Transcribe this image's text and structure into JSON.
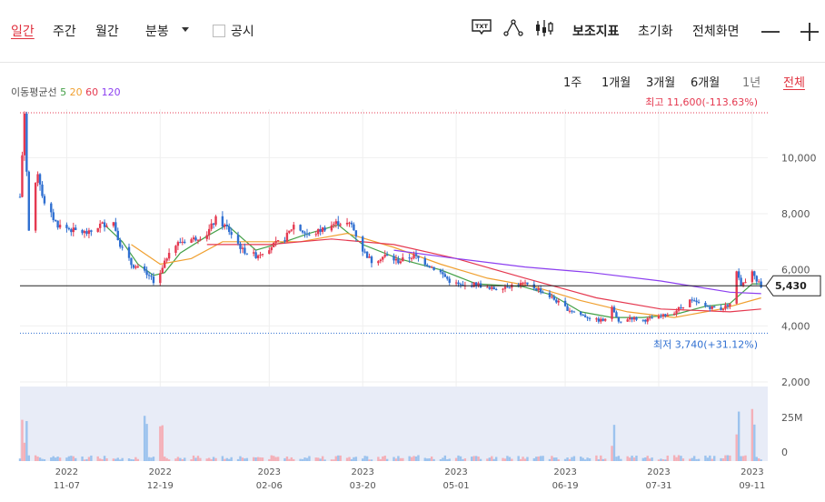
{
  "toolbar": {
    "tabs": [
      "일간",
      "주간",
      "월간",
      "분봉"
    ],
    "disclosure_label": "공시",
    "txt_icon_label": "TXT",
    "indicator_label": "보조지표",
    "reset_label": "초기화",
    "fullscreen_label": "전체화면",
    "zoom_out": "—",
    "zoom_in": "+"
  },
  "moving_average": {
    "label": "이동평균선",
    "periods": [
      "5",
      "20",
      "60",
      "120"
    ],
    "colors": {
      "5": "#43a047",
      "20": "#f0a030",
      "60": "#e53950",
      "120": "#8c3ff0"
    }
  },
  "periods": [
    "1주",
    "1개월",
    "3개월",
    "6개월",
    "1년",
    "전체"
  ],
  "colors": {
    "up": "#e53950",
    "down": "#2f6fd1",
    "volume_up": "#f4b0b8",
    "volume_down": "#9cc3ee"
  },
  "chart_data": {
    "type": "candlestick",
    "current_price": 5430,
    "current_price_label": "5,430",
    "high": {
      "value": 11600,
      "label": "최고 11,600(-113.63%)"
    },
    "low": {
      "value": 3740,
      "label": "최저 3,740(+31.12%)"
    },
    "ylim": [
      2000,
      11600
    ],
    "y_ticks": [
      10000,
      8000,
      6000,
      4000,
      2000
    ],
    "y_tick_labels": [
      "10,000",
      "8,000",
      "6,000",
      "4,000",
      "2,000"
    ],
    "volume_ticks": [
      "25M",
      "0"
    ],
    "volume_max_millions": 50,
    "x_ticks": [
      {
        "date": "2022-11-07",
        "year": "2022",
        "md": "11-07"
      },
      {
        "date": "2022-12-19",
        "year": "2022",
        "md": "12-19"
      },
      {
        "date": "2023-02-06",
        "year": "2023",
        "md": "02-06"
      },
      {
        "date": "2023-03-20",
        "year": "2023",
        "md": "03-20"
      },
      {
        "date": "2023-05-01",
        "year": "2023",
        "md": "05-01"
      },
      {
        "date": "2023-06-19",
        "year": "2023",
        "md": "06-19"
      },
      {
        "date": "2023-07-31",
        "year": "2023",
        "md": "07-31"
      },
      {
        "date": "2023-09-11",
        "year": "2023",
        "md": "09-11"
      }
    ],
    "x_range": [
      "2022-10-17",
      "2023-09-18"
    ],
    "price_path": [
      [
        "2022-10-17",
        8600
      ],
      [
        "2022-10-19",
        11600
      ],
      [
        "2022-10-21",
        7400
      ],
      [
        "2022-10-25",
        9500
      ],
      [
        "2022-10-28",
        8300
      ],
      [
        "2022-11-03",
        7600
      ],
      [
        "2022-11-10",
        7400
      ],
      [
        "2022-11-17",
        7300
      ],
      [
        "2022-11-22",
        7600
      ],
      [
        "2022-11-28",
        7700
      ],
      [
        "2022-12-01",
        6900
      ],
      [
        "2022-12-06",
        6200
      ],
      [
        "2022-12-12",
        5900
      ],
      [
        "2022-12-16",
        5600
      ],
      [
        "2022-12-20",
        6000
      ],
      [
        "2022-12-23",
        6700
      ],
      [
        "2022-12-28",
        7000
      ],
      [
        "2023-01-03",
        7100
      ],
      [
        "2023-01-09",
        7300
      ],
      [
        "2023-01-13",
        7800
      ],
      [
        "2023-01-18",
        7500
      ],
      [
        "2023-01-25",
        6700
      ],
      [
        "2023-01-31",
        6500
      ],
      [
        "2023-02-06",
        6800
      ],
      [
        "2023-02-13",
        7100
      ],
      [
        "2023-02-17",
        7600
      ],
      [
        "2023-02-24",
        7200
      ],
      [
        "2023-03-03",
        7500
      ],
      [
        "2023-03-09",
        7700
      ],
      [
        "2023-03-15",
        7600
      ],
      [
        "2023-03-20",
        6700
      ],
      [
        "2023-03-24",
        6300
      ],
      [
        "2023-03-30",
        6500
      ],
      [
        "2023-04-05",
        6300
      ],
      [
        "2023-04-12",
        6500
      ],
      [
        "2023-04-18",
        6200
      ],
      [
        "2023-04-24",
        5900
      ],
      [
        "2023-04-28",
        5600
      ],
      [
        "2023-05-04",
        5400
      ],
      [
        "2023-05-10",
        5500
      ],
      [
        "2023-05-16",
        5300
      ],
      [
        "2023-05-22",
        5400
      ],
      [
        "2023-05-31",
        5500
      ],
      [
        "2023-06-07",
        5300
      ],
      [
        "2023-06-13",
        5000
      ],
      [
        "2023-06-20",
        4600
      ],
      [
        "2023-06-26",
        4400
      ],
      [
        "2023-07-03",
        4200
      ],
      [
        "2023-07-07",
        4200
      ],
      [
        "2023-07-10",
        4700
      ],
      [
        "2023-07-13",
        4100
      ],
      [
        "2023-07-18",
        4300
      ],
      [
        "2023-07-24",
        4200
      ],
      [
        "2023-07-31",
        4300
      ],
      [
        "2023-08-07",
        4500
      ],
      [
        "2023-08-14",
        4900
      ],
      [
        "2023-08-21",
        4700
      ],
      [
        "2023-08-28",
        4600
      ],
      [
        "2023-09-01",
        4800
      ],
      [
        "2023-09-04",
        5900
      ],
      [
        "2023-09-06",
        5400
      ],
      [
        "2023-09-11",
        5900
      ],
      [
        "2023-09-15",
        5430
      ]
    ],
    "ma5": [
      [
        "2022-11-24",
        7600
      ],
      [
        "2022-12-02",
        7000
      ],
      [
        "2022-12-09",
        6200
      ],
      [
        "2022-12-16",
        5800
      ],
      [
        "2022-12-21",
        5900
      ],
      [
        "2022-12-28",
        6600
      ],
      [
        "2023-01-09",
        7200
      ],
      [
        "2023-01-18",
        7600
      ],
      [
        "2023-01-31",
        6700
      ],
      [
        "2023-02-13",
        7000
      ],
      [
        "2023-02-24",
        7300
      ],
      [
        "2023-03-09",
        7600
      ],
      [
        "2023-03-20",
        6900
      ],
      [
        "2023-04-05",
        6400
      ],
      [
        "2023-04-24",
        6000
      ],
      [
        "2023-05-10",
        5500
      ],
      [
        "2023-05-31",
        5400
      ],
      [
        "2023-06-13",
        5100
      ],
      [
        "2023-06-26",
        4500
      ],
      [
        "2023-07-10",
        4300
      ],
      [
        "2023-07-24",
        4300
      ],
      [
        "2023-08-07",
        4400
      ],
      [
        "2023-08-21",
        4700
      ],
      [
        "2023-09-01",
        4800
      ],
      [
        "2023-09-11",
        5500
      ],
      [
        "2023-09-15",
        5500
      ]
    ],
    "ma20": [
      [
        "2022-12-06",
        6900
      ],
      [
        "2022-12-19",
        6200
      ],
      [
        "2023-01-02",
        6400
      ],
      [
        "2023-01-16",
        7000
      ],
      [
        "2023-02-01",
        7000
      ],
      [
        "2023-02-20",
        7000
      ],
      [
        "2023-03-13",
        7300
      ],
      [
        "2023-04-03",
        6800
      ],
      [
        "2023-04-24",
        6200
      ],
      [
        "2023-05-15",
        5700
      ],
      [
        "2023-06-05",
        5400
      ],
      [
        "2023-06-26",
        4900
      ],
      [
        "2023-07-17",
        4500
      ],
      [
        "2023-08-07",
        4300
      ],
      [
        "2023-08-28",
        4600
      ],
      [
        "2023-09-15",
        5000
      ]
    ],
    "ma60": [
      [
        "2023-01-09",
        6900
      ],
      [
        "2023-02-06",
        6900
      ],
      [
        "2023-03-06",
        7100
      ],
      [
        "2023-04-03",
        6900
      ],
      [
        "2023-05-01",
        6400
      ],
      [
        "2023-06-01",
        5700
      ],
      [
        "2023-07-03",
        5000
      ],
      [
        "2023-08-01",
        4600
      ],
      [
        "2023-09-01",
        4500
      ],
      [
        "2023-09-15",
        4600
      ]
    ],
    "ma120": [
      [
        "2023-04-03",
        6700
      ],
      [
        "2023-05-01",
        6400
      ],
      [
        "2023-06-01",
        6100
      ],
      [
        "2023-07-01",
        5900
      ],
      [
        "2023-08-01",
        5600
      ],
      [
        "2023-09-01",
        5200
      ],
      [
        "2023-09-15",
        5150
      ]
    ]
  }
}
